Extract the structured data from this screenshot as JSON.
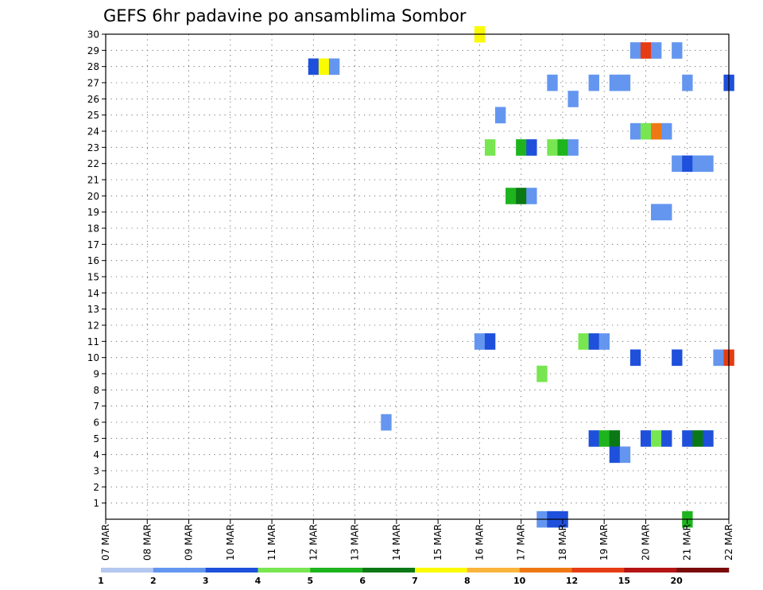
{
  "chart_data": {
    "type": "heatmap",
    "title": "GEFS 6hr padavine po ansamblima Sombor",
    "xlabel": "",
    "ylabel": "",
    "x_ticks": [
      "07 MAR",
      "08 MAR",
      "09 MAR",
      "10 MAR",
      "11 MAR",
      "12 MAR",
      "13 MAR",
      "14 MAR",
      "15 MAR",
      "16 MAR",
      "17 MAR",
      "18 MAR",
      "19 MAR",
      "20 MAR",
      "21 MAR",
      "22 MAR"
    ],
    "xlim": [
      0,
      60
    ],
    "x_unit": "6-hour steps from 07 MAR",
    "y_ticks": [
      1,
      2,
      3,
      4,
      5,
      6,
      7,
      8,
      9,
      10,
      11,
      12,
      13,
      14,
      15,
      16,
      17,
      18,
      19,
      20,
      21,
      22,
      23,
      24,
      25,
      26,
      27,
      28,
      29,
      30
    ],
    "ylim": [
      0,
      30
    ],
    "grid": true,
    "legend": {
      "placement": "bottom",
      "colors": [
        "#b4c8f0",
        "#6496f0",
        "#1e50dc",
        "#78e650",
        "#1eb41e",
        "#0a7814",
        "#fafa00",
        "#fab43c",
        "#f07814",
        "#e63c14",
        "#b41414",
        "#7a0a0a"
      ],
      "labels": [
        "1",
        "2",
        "3",
        "4",
        "5",
        "6",
        "7",
        "8",
        "10",
        "12",
        "15",
        "20"
      ]
    },
    "cells": [
      [
        36,
        30,
        6
      ],
      [
        51,
        29,
        1
      ],
      [
        52,
        29,
        9
      ],
      [
        53,
        29,
        1
      ],
      [
        55,
        29,
        1
      ],
      [
        20,
        28,
        2
      ],
      [
        21,
        28,
        6
      ],
      [
        22,
        28,
        1
      ],
      [
        43,
        27,
        1
      ],
      [
        47,
        27,
        1
      ],
      [
        49,
        27,
        1
      ],
      [
        50,
        27,
        1
      ],
      [
        56,
        27,
        1
      ],
      [
        60,
        27,
        2
      ],
      [
        45,
        26,
        1
      ],
      [
        38,
        25,
        1
      ],
      [
        51,
        24,
        1
      ],
      [
        52,
        24,
        3
      ],
      [
        53,
        24,
        8
      ],
      [
        54,
        24,
        1
      ],
      [
        37,
        23,
        3
      ],
      [
        40,
        23,
        4
      ],
      [
        41,
        23,
        2
      ],
      [
        43,
        23,
        3
      ],
      [
        44,
        23,
        4
      ],
      [
        45,
        23,
        1
      ],
      [
        55,
        22,
        1
      ],
      [
        56,
        22,
        2
      ],
      [
        57,
        22,
        1
      ],
      [
        58,
        22,
        1
      ],
      [
        39,
        20,
        4
      ],
      [
        40,
        20,
        5
      ],
      [
        41,
        20,
        1
      ],
      [
        53,
        19,
        1
      ],
      [
        54,
        19,
        1
      ],
      [
        36,
        11,
        1
      ],
      [
        37,
        11,
        2
      ],
      [
        46,
        11,
        3
      ],
      [
        47,
        11,
        2
      ],
      [
        48,
        11,
        1
      ],
      [
        51,
        10,
        2
      ],
      [
        55,
        10,
        2
      ],
      [
        59,
        10,
        1
      ],
      [
        60,
        10,
        9
      ],
      [
        42,
        9,
        3
      ],
      [
        27,
        6,
        1
      ],
      [
        47,
        5,
        2
      ],
      [
        48,
        5,
        4
      ],
      [
        49,
        5,
        5
      ],
      [
        52,
        5,
        2
      ],
      [
        53,
        5,
        3
      ],
      [
        54,
        5,
        2
      ],
      [
        56,
        5,
        2
      ],
      [
        57,
        5,
        5
      ],
      [
        58,
        5,
        2
      ],
      [
        49,
        4,
        2
      ],
      [
        50,
        4,
        1
      ],
      [
        42,
        0,
        1
      ],
      [
        43,
        0,
        2
      ],
      [
        44,
        0,
        2
      ],
      [
        56,
        0,
        4
      ]
    ]
  }
}
